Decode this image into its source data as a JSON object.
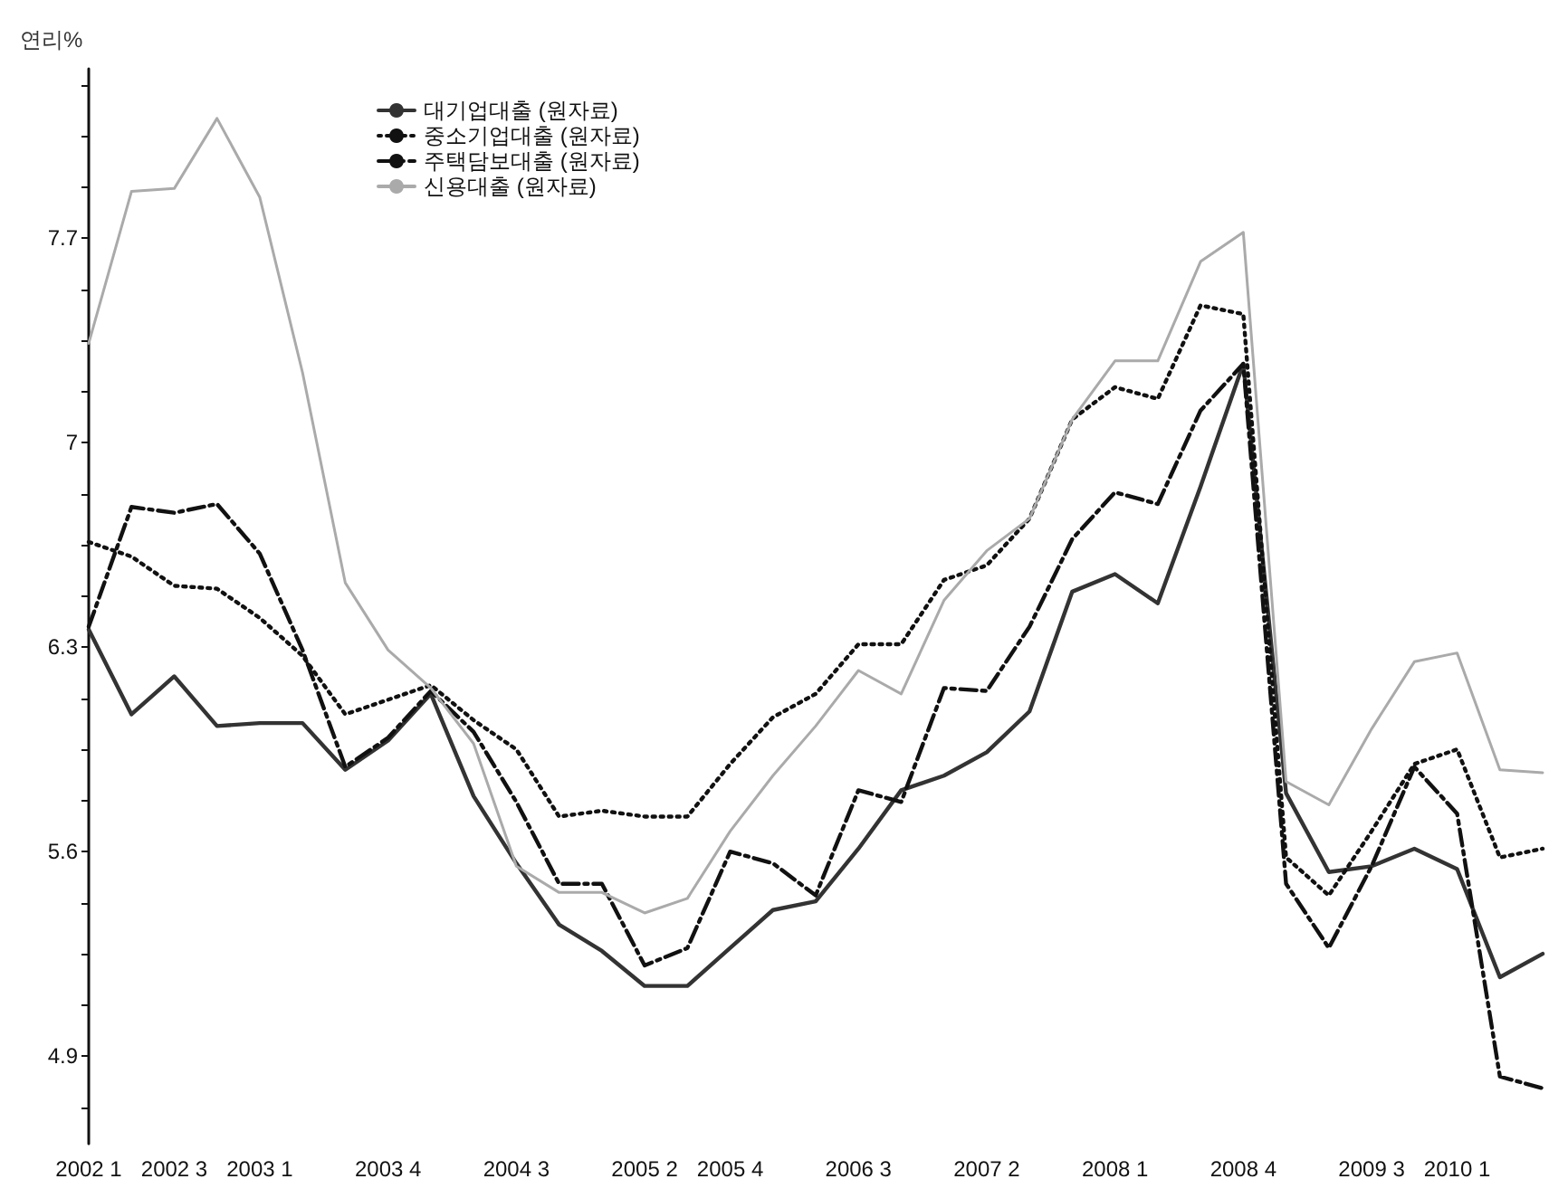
{
  "chart_data": {
    "type": "line",
    "ylabel": "연리%",
    "categories": [
      "2002 1",
      null,
      "2002 3",
      null,
      "2003 1",
      null,
      null,
      "2003 4",
      null,
      null,
      "2004 3",
      null,
      null,
      "2005 2",
      null,
      "2005 4",
      null,
      null,
      "2006 3",
      null,
      null,
      "2007 2",
      null,
      null,
      "2008 1",
      null,
      null,
      "2008 4",
      null,
      null,
      "2009 3",
      null,
      "2010 1",
      null,
      null
    ],
    "series": [
      {
        "name": "대기업대출 (원자료)",
        "color": "#333333",
        "line_style": "solid",
        "values": [
          6.36,
          6.07,
          6.2,
          6.03,
          6.04,
          6.04,
          5.88,
          5.98,
          6.14,
          5.79,
          5.56,
          5.35,
          5.26,
          5.14,
          5.14,
          5.27,
          5.4,
          5.43,
          5.61,
          5.81,
          5.86,
          5.94,
          6.08,
          6.49,
          6.55,
          6.45,
          6.85,
          7.27,
          5.8,
          5.53,
          5.55,
          5.61,
          5.54,
          5.17,
          5.25
        ]
      },
      {
        "name": "중소기업대출 (원자료)",
        "color": "#111111",
        "line_style": "dotted",
        "values": [
          6.66,
          6.61,
          6.51,
          6.5,
          6.4,
          6.27,
          6.07,
          6.12,
          6.17,
          6.05,
          5.95,
          5.72,
          5.74,
          5.72,
          5.72,
          5.9,
          6.06,
          6.14,
          6.31,
          6.31,
          6.53,
          6.58,
          6.74,
          7.08,
          7.19,
          7.15,
          7.47,
          7.44,
          5.58,
          5.45,
          5.67,
          5.9,
          5.95,
          5.58,
          5.61
        ]
      },
      {
        "name": "주택담보대출 (원자료)",
        "color": "#111111",
        "line_style": "dashdot",
        "values": [
          6.37,
          6.78,
          6.76,
          6.79,
          6.62,
          6.29,
          5.89,
          5.99,
          6.15,
          6.01,
          5.77,
          5.49,
          5.49,
          5.21,
          5.27,
          5.6,
          5.56,
          5.45,
          5.81,
          5.77,
          6.16,
          6.15,
          6.37,
          6.67,
          6.83,
          6.79,
          7.11,
          7.27,
          5.49,
          5.27,
          5.55,
          5.89,
          5.73,
          4.83,
          4.79
        ]
      },
      {
        "name": "신용대출 (원자료)",
        "color": "#aaaaaa",
        "line_style": "solid",
        "values": [
          7.34,
          7.86,
          7.87,
          8.11,
          7.84,
          7.24,
          6.52,
          6.29,
          6.16,
          5.97,
          5.55,
          5.46,
          5.46,
          5.39,
          5.44,
          5.67,
          5.86,
          6.03,
          6.22,
          6.14,
          6.46,
          6.63,
          6.74,
          7.08,
          7.28,
          7.28,
          7.62,
          7.72,
          5.84,
          5.76,
          6.02,
          6.25,
          6.28,
          5.88,
          5.87
        ]
      }
    ],
    "ylim": [
      4.6,
      8.28
    ],
    "yticks": [
      {
        "value": 4.725,
        "label": null
      },
      4.9,
      {
        "value": 5.075,
        "label": null
      },
      {
        "value": 5.25,
        "label": null
      },
      {
        "value": 5.425,
        "label": null
      },
      5.6,
      {
        "value": 5.775,
        "label": null
      },
      {
        "value": 5.95,
        "label": null
      },
      {
        "value": 6.125,
        "label": null
      },
      6.3,
      {
        "value": 6.475,
        "label": null
      },
      {
        "value": 6.65,
        "label": null
      },
      {
        "value": 6.825,
        "label": null
      },
      7,
      {
        "value": 7.175,
        "label": null
      },
      {
        "value": 7.35,
        "label": null
      },
      {
        "value": 7.525,
        "label": null
      },
      7.7,
      {
        "value": 7.875,
        "label": null
      },
      {
        "value": 8.05,
        "label": null
      },
      {
        "value": 8.225,
        "label": null
      }
    ],
    "grid": false,
    "legend": "top left",
    "marker": "none"
  }
}
